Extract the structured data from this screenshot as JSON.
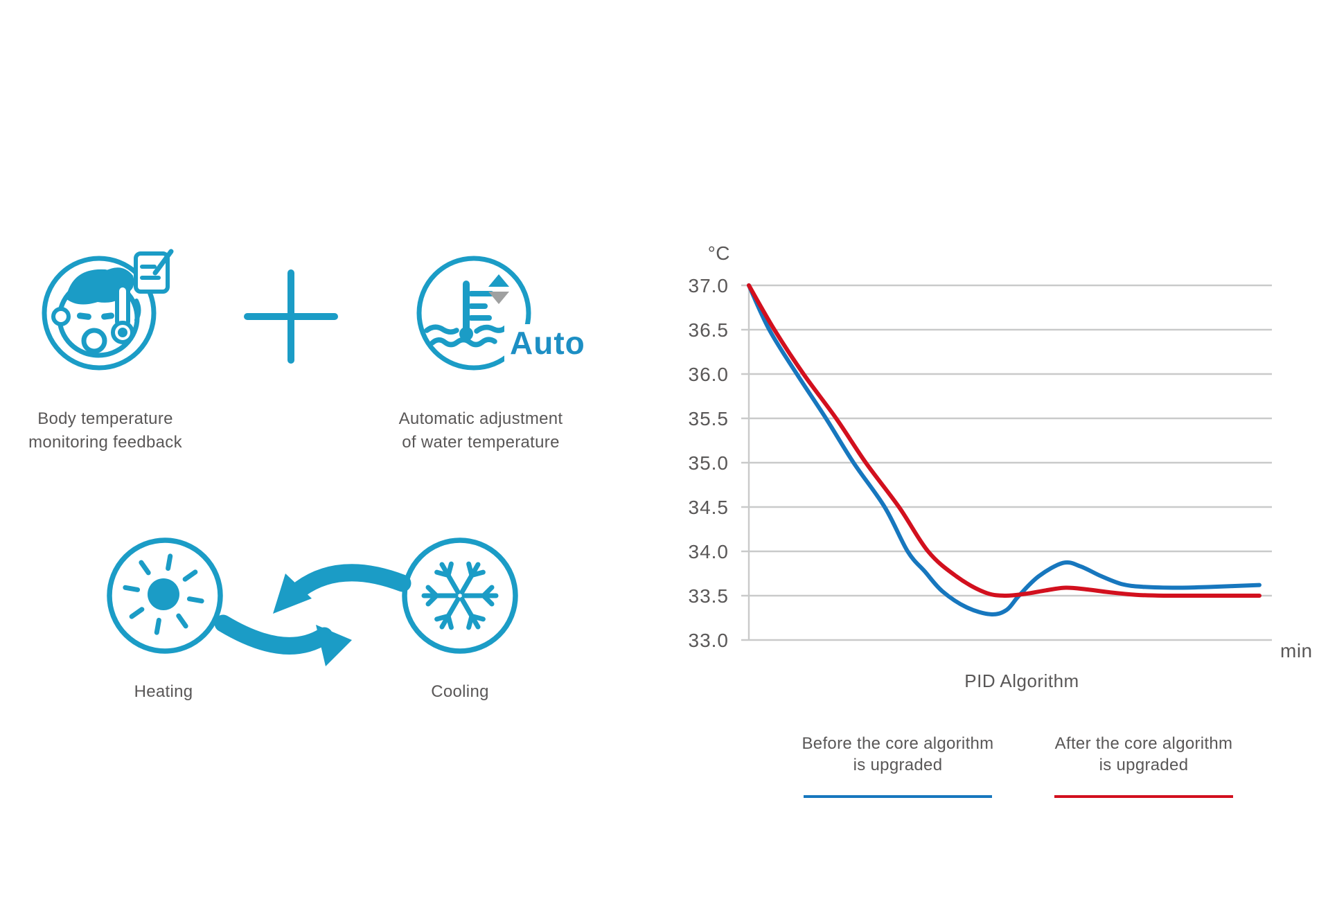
{
  "colors": {
    "teal": "#1B9CC6",
    "chart_blue": "#1777BE",
    "chart_red": "#D2101E",
    "text_gray": "#595757",
    "grid_gray": "#C9CACA",
    "arrow_gray": "#9FA0A0",
    "auto_text": "#1D8FC4"
  },
  "icons": {
    "body_temp": {
      "icon": "baby-thermometer-icon",
      "label_line1": "Body temperature",
      "label_line2": "monitoring feedback"
    },
    "plus": {
      "icon": "plus-icon"
    },
    "auto_adjust": {
      "icon": "water-thermometer-icon",
      "badge": "Auto",
      "label_line1": "Automatic adjustment",
      "label_line2": "of water temperature"
    },
    "heating": {
      "icon": "sun-icon",
      "label": "Heating"
    },
    "cooling": {
      "icon": "snowflake-icon",
      "label": "Cooling"
    }
  },
  "chart_data": {
    "type": "line",
    "title": "PID Algorithm",
    "y_axis_label": "°C",
    "x_axis_label": "min",
    "ylim": [
      33.0,
      37.0
    ],
    "y_ticks": [
      "37.0",
      "36.5",
      "36.0",
      "35.5",
      "35.0",
      "34.5",
      "34.0",
      "33.5",
      "33.0"
    ],
    "x_ticks": "none (unlabeled time axis in minutes)",
    "grid": "horizontal only",
    "legend_position": "below chart",
    "series": [
      {
        "name": "Before the core algorithm is upgraded",
        "color": "#1777BE",
        "points": [
          [
            0.0,
            37.0
          ],
          [
            0.04,
            36.5
          ],
          [
            0.094,
            36.0
          ],
          [
            0.151,
            35.5
          ],
          [
            0.205,
            35.0
          ],
          [
            0.266,
            34.5
          ],
          [
            0.311,
            34.0
          ],
          [
            0.345,
            33.77
          ],
          [
            0.379,
            33.55
          ],
          [
            0.426,
            33.37
          ],
          [
            0.474,
            33.29
          ],
          [
            0.505,
            33.34
          ],
          [
            0.529,
            33.5
          ],
          [
            0.568,
            33.72
          ],
          [
            0.616,
            33.87
          ],
          [
            0.65,
            33.83
          ],
          [
            0.69,
            33.72
          ],
          [
            0.731,
            33.63
          ],
          [
            0.772,
            33.6
          ],
          [
            0.84,
            33.59
          ],
          [
            0.908,
            33.6
          ],
          [
            1.0,
            33.62
          ]
        ]
      },
      {
        "name": "After the core algorithm is upgraded",
        "color": "#D2101E",
        "points": [
          [
            0.0,
            37.0
          ],
          [
            0.05,
            36.5
          ],
          [
            0.107,
            36.0
          ],
          [
            0.171,
            35.5
          ],
          [
            0.229,
            35.0
          ],
          [
            0.294,
            34.5
          ],
          [
            0.351,
            34.0
          ],
          [
            0.406,
            33.72
          ],
          [
            0.461,
            33.54
          ],
          [
            0.5,
            33.5
          ],
          [
            0.541,
            33.52
          ],
          [
            0.582,
            33.56
          ],
          [
            0.621,
            33.59
          ],
          [
            0.663,
            33.57
          ],
          [
            0.704,
            33.54
          ],
          [
            0.758,
            33.51
          ],
          [
            0.813,
            33.5
          ],
          [
            0.908,
            33.5
          ],
          [
            1.0,
            33.5
          ]
        ]
      }
    ]
  },
  "legend": [
    {
      "line1": "Before the core algorithm",
      "line2": "is upgraded",
      "color": "#1777BE"
    },
    {
      "line1": "After the core algorithm",
      "line2": "is upgraded",
      "color": "#D2101E"
    }
  ]
}
